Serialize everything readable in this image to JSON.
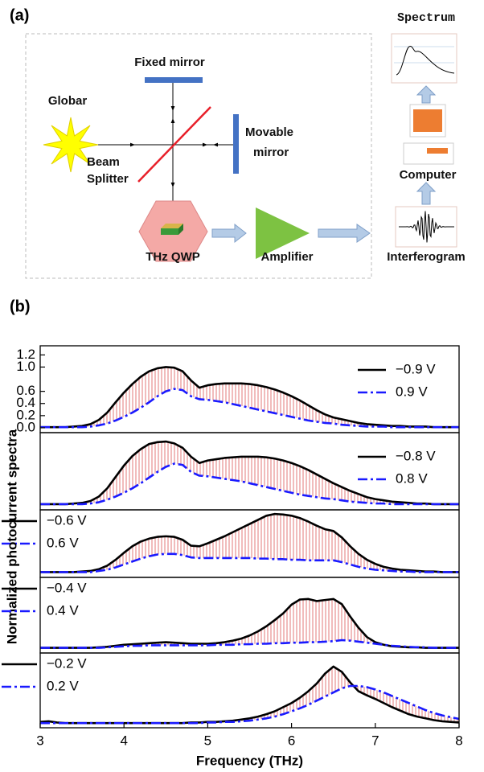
{
  "panel_a": {
    "label": "(a)",
    "fixed_mirror": "Fixed mirror",
    "globar": "Globar",
    "movable_mirror": [
      "Movable",
      "mirror"
    ],
    "beam_splitter": [
      "Beam",
      "Splitter"
    ],
    "thz_qwp": "THz QWP",
    "amplifier": "Amplifier",
    "interferogram": "Interferogram",
    "computer": "Computer",
    "spectrum": "Spectrum"
  },
  "panel_b": {
    "label": "(b)"
  },
  "chart_data": [
    {
      "type": "line",
      "xlim": [
        3,
        8
      ],
      "ylim": [
        -0.08,
        1.35
      ],
      "yticks": [
        {
          "value": 0,
          "label": "0.0"
        },
        0.2,
        0.4,
        0.6,
        {
          "value": 1,
          "label": "1.0"
        },
        1.2
      ],
      "legend": "upper right",
      "fill_between": true,
      "fill_color": "#e06b6b",
      "x": [
        3,
        3.1,
        3.2,
        3.3,
        3.4,
        3.5,
        3.6,
        3.7,
        3.8,
        3.9,
        4,
        4.1,
        4.2,
        4.3,
        4.4,
        4.5,
        4.6,
        4.7,
        4.8,
        4.9,
        5,
        5.1,
        5.2,
        5.3,
        5.4,
        5.5,
        5.6,
        5.7,
        5.8,
        5.9,
        6,
        6.1,
        6.2,
        6.3,
        6.4,
        6.5,
        6.6,
        6.7,
        6.8,
        6.9,
        7,
        7.1,
        7.2,
        7.3,
        7.4,
        7.5,
        7.6,
        7.7,
        7.8,
        7.9,
        8
      ],
      "series": [
        {
          "name": "−0.9 V",
          "color": "#000000",
          "linestyle": "solid",
          "values": [
            0.01,
            0.01,
            0.01,
            0.01,
            0.02,
            0.03,
            0.06,
            0.13,
            0.25,
            0.42,
            0.58,
            0.72,
            0.84,
            0.93,
            0.98,
            1.0,
            0.99,
            0.93,
            0.78,
            0.66,
            0.7,
            0.72,
            0.73,
            0.73,
            0.73,
            0.72,
            0.7,
            0.67,
            0.63,
            0.58,
            0.52,
            0.45,
            0.37,
            0.29,
            0.22,
            0.17,
            0.14,
            0.11,
            0.08,
            0.06,
            0.05,
            0.04,
            0.03,
            0.03,
            0.02,
            0.02,
            0.02,
            0.01,
            0.01,
            0.01,
            0.01
          ]
        },
        {
          "name": "0.9 V",
          "color": "#1a1aff",
          "linestyle": "dashdot",
          "values": [
            0.01,
            0.01,
            0.01,
            0.01,
            0.01,
            0.01,
            0.02,
            0.04,
            0.07,
            0.12,
            0.18,
            0.25,
            0.33,
            0.42,
            0.52,
            0.6,
            0.64,
            0.62,
            0.52,
            0.47,
            0.46,
            0.44,
            0.42,
            0.39,
            0.36,
            0.33,
            0.3,
            0.27,
            0.24,
            0.21,
            0.18,
            0.15,
            0.12,
            0.1,
            0.08,
            0.07,
            0.05,
            0.04,
            0.03,
            0.02,
            0.02,
            0.02,
            0.01,
            0.01,
            0.01,
            0.01,
            0.01,
            0.01,
            0.01,
            0.01,
            0.01
          ]
        }
      ]
    },
    {
      "type": "line",
      "xlim": [
        3,
        8
      ],
      "ylim": [
        -0.08,
        1.14
      ],
      "legend": "upper right",
      "fill_between": true,
      "fill_color": "#e06b6b",
      "x": [
        3,
        3.1,
        3.2,
        3.3,
        3.4,
        3.5,
        3.6,
        3.7,
        3.8,
        3.9,
        4,
        4.1,
        4.2,
        4.3,
        4.4,
        4.5,
        4.6,
        4.7,
        4.8,
        4.9,
        5,
        5.1,
        5.2,
        5.3,
        5.4,
        5.5,
        5.6,
        5.7,
        5.8,
        5.9,
        6,
        6.1,
        6.2,
        6.3,
        6.4,
        6.5,
        6.6,
        6.7,
        6.8,
        6.9,
        7,
        7.1,
        7.2,
        7.3,
        7.4,
        7.5,
        7.6,
        7.7,
        7.8,
        7.9,
        8
      ],
      "series": [
        {
          "name": "−0.8 V",
          "color": "#000000",
          "linestyle": "solid",
          "values": [
            0.01,
            0.01,
            0.01,
            0.01,
            0.02,
            0.03,
            0.06,
            0.13,
            0.26,
            0.44,
            0.62,
            0.77,
            0.88,
            0.96,
            0.99,
            1.0,
            0.97,
            0.9,
            0.76,
            0.66,
            0.7,
            0.72,
            0.74,
            0.75,
            0.76,
            0.76,
            0.76,
            0.75,
            0.73,
            0.7,
            0.66,
            0.61,
            0.55,
            0.48,
            0.41,
            0.34,
            0.28,
            0.22,
            0.17,
            0.12,
            0.09,
            0.07,
            0.05,
            0.04,
            0.03,
            0.02,
            0.02,
            0.01,
            0.01,
            0.01,
            0.01
          ]
        },
        {
          "name": "0.8 V",
          "color": "#1a1aff",
          "linestyle": "dashdot",
          "values": [
            0.01,
            0.01,
            0.01,
            0.01,
            0.01,
            0.01,
            0.02,
            0.04,
            0.08,
            0.13,
            0.19,
            0.26,
            0.34,
            0.43,
            0.52,
            0.6,
            0.65,
            0.63,
            0.52,
            0.46,
            0.45,
            0.43,
            0.41,
            0.39,
            0.37,
            0.34,
            0.31,
            0.28,
            0.25,
            0.22,
            0.19,
            0.16,
            0.14,
            0.12,
            0.1,
            0.09,
            0.07,
            0.05,
            0.04,
            0.03,
            0.02,
            0.02,
            0.01,
            0.01,
            0.01,
            0.01,
            0.01,
            0.01,
            0.01,
            0.01,
            0.01
          ]
        }
      ]
    },
    {
      "type": "line",
      "xlim": [
        3,
        8
      ],
      "ylim": [
        -0.08,
        1.07
      ],
      "ylabel": "Normalized photocurrent spectra",
      "legend": "upper left",
      "fill_between": true,
      "fill_color": "#e06b6b",
      "x": [
        3,
        3.1,
        3.2,
        3.3,
        3.4,
        3.5,
        3.6,
        3.7,
        3.8,
        3.9,
        4,
        4.1,
        4.2,
        4.3,
        4.4,
        4.5,
        4.6,
        4.7,
        4.8,
        4.9,
        5,
        5.1,
        5.2,
        5.3,
        5.4,
        5.5,
        5.6,
        5.7,
        5.8,
        5.9,
        6,
        6.1,
        6.2,
        6.3,
        6.4,
        6.5,
        6.6,
        6.7,
        6.8,
        6.9,
        7,
        7.1,
        7.2,
        7.3,
        7.4,
        7.5,
        7.6,
        7.7,
        7.8,
        7.9,
        8
      ],
      "series": [
        {
          "name": "−0.6 V",
          "color": "#000000",
          "linestyle": "solid",
          "values": [
            0.01,
            0.01,
            0.01,
            0.01,
            0.01,
            0.02,
            0.03,
            0.06,
            0.12,
            0.22,
            0.34,
            0.45,
            0.53,
            0.58,
            0.61,
            0.62,
            0.61,
            0.56,
            0.46,
            0.45,
            0.5,
            0.56,
            0.62,
            0.69,
            0.76,
            0.83,
            0.9,
            0.97,
            1.0,
            0.99,
            0.97,
            0.93,
            0.87,
            0.8,
            0.74,
            0.71,
            0.6,
            0.45,
            0.32,
            0.22,
            0.15,
            0.1,
            0.07,
            0.05,
            0.04,
            0.03,
            0.02,
            0.02,
            0.01,
            0.01,
            0.01
          ]
        },
        {
          "name": "0.6 V",
          "color": "#1a1aff",
          "linestyle": "dashdot",
          "values": [
            0.01,
            0.01,
            0.01,
            0.01,
            0.01,
            0.01,
            0.01,
            0.03,
            0.05,
            0.09,
            0.14,
            0.19,
            0.24,
            0.28,
            0.31,
            0.32,
            0.32,
            0.3,
            0.26,
            0.25,
            0.25,
            0.25,
            0.25,
            0.25,
            0.25,
            0.25,
            0.24,
            0.24,
            0.23,
            0.23,
            0.22,
            0.22,
            0.21,
            0.21,
            0.21,
            0.21,
            0.18,
            0.14,
            0.1,
            0.07,
            0.05,
            0.04,
            0.03,
            0.02,
            0.02,
            0.01,
            0.01,
            0.01,
            0.01,
            0.01,
            0.01
          ]
        }
      ]
    },
    {
      "type": "line",
      "xlim": [
        3,
        8
      ],
      "ylim": [
        -0.09,
        1.38
      ],
      "legend": "upper left",
      "fill_between": true,
      "fill_color": "#e06b6b",
      "x": [
        3,
        3.1,
        3.2,
        3.3,
        3.4,
        3.5,
        3.6,
        3.7,
        3.8,
        3.9,
        4,
        4.1,
        4.2,
        4.3,
        4.4,
        4.5,
        4.6,
        4.7,
        4.8,
        4.9,
        5,
        5.1,
        5.2,
        5.3,
        5.4,
        5.5,
        5.6,
        5.7,
        5.8,
        5.9,
        6,
        6.1,
        6.2,
        6.3,
        6.4,
        6.5,
        6.6,
        6.7,
        6.8,
        6.9,
        7,
        7.1,
        7.2,
        7.3,
        7.4,
        7.5,
        7.6,
        7.7,
        7.8,
        7.9,
        8
      ],
      "series": [
        {
          "name": "−0.4 V",
          "color": "#000000",
          "linestyle": "solid",
          "values": [
            0.01,
            0.01,
            0.01,
            0.01,
            0.01,
            0.01,
            0.01,
            0.02,
            0.03,
            0.05,
            0.07,
            0.08,
            0.09,
            0.1,
            0.11,
            0.12,
            0.11,
            0.1,
            0.09,
            0.09,
            0.09,
            0.1,
            0.12,
            0.15,
            0.19,
            0.25,
            0.33,
            0.43,
            0.55,
            0.68,
            0.85,
            0.95,
            0.96,
            0.92,
            0.94,
            0.96,
            0.86,
            0.62,
            0.4,
            0.22,
            0.12,
            0.07,
            0.04,
            0.03,
            0.02,
            0.02,
            0.01,
            0.01,
            0.01,
            0.01,
            0.01
          ]
        },
        {
          "name": "0.4 V",
          "color": "#1a1aff",
          "linestyle": "dashdot",
          "values": [
            0.01,
            0.01,
            0.01,
            0.01,
            0.01,
            0.01,
            0.01,
            0.01,
            0.02,
            0.03,
            0.04,
            0.05,
            0.05,
            0.06,
            0.06,
            0.06,
            0.06,
            0.06,
            0.06,
            0.06,
            0.06,
            0.07,
            0.07,
            0.07,
            0.08,
            0.08,
            0.09,
            0.09,
            0.1,
            0.1,
            0.11,
            0.11,
            0.12,
            0.12,
            0.13,
            0.14,
            0.16,
            0.15,
            0.13,
            0.11,
            0.09,
            0.07,
            0.05,
            0.04,
            0.03,
            0.02,
            0.02,
            0.01,
            0.01,
            0.01,
            0.01
          ]
        }
      ]
    },
    {
      "type": "line",
      "xlim": [
        3,
        8
      ],
      "ylim": [
        -0.07,
        1.2
      ],
      "xticks": [
        3,
        4,
        5,
        6,
        7,
        8
      ],
      "xlabel": "Frequency (THz)",
      "legend": "upper left",
      "fill_between": true,
      "fill_color": "#e06b6b",
      "x": [
        3,
        3.1,
        3.2,
        3.3,
        3.4,
        3.5,
        3.6,
        3.7,
        3.8,
        3.9,
        4,
        4.1,
        4.2,
        4.3,
        4.4,
        4.5,
        4.6,
        4.7,
        4.8,
        4.9,
        5,
        5.1,
        5.2,
        5.3,
        5.4,
        5.5,
        5.6,
        5.7,
        5.8,
        5.9,
        6,
        6.1,
        6.2,
        6.3,
        6.4,
        6.5,
        6.6,
        6.7,
        6.8,
        6.9,
        7,
        7.1,
        7.2,
        7.3,
        7.4,
        7.5,
        7.6,
        7.7,
        7.8,
        7.9,
        8
      ],
      "series": [
        {
          "name": "−0.2 V",
          "color": "#000000",
          "linestyle": "solid",
          "values": [
            0.03,
            0.04,
            0.02,
            0.01,
            0.01,
            0.01,
            0.01,
            0.01,
            0.01,
            0.01,
            0.01,
            0.01,
            0.01,
            0.01,
            0.01,
            0.01,
            0.01,
            0.01,
            0.02,
            0.02,
            0.03,
            0.03,
            0.04,
            0.05,
            0.07,
            0.09,
            0.12,
            0.16,
            0.21,
            0.28,
            0.35,
            0.44,
            0.55,
            0.68,
            0.85,
            0.97,
            0.88,
            0.7,
            0.55,
            0.48,
            0.42,
            0.35,
            0.28,
            0.22,
            0.16,
            0.12,
            0.09,
            0.06,
            0.04,
            0.03,
            0.02
          ]
        },
        {
          "name": "0.2 V",
          "color": "#1a1aff",
          "linestyle": "dashdot",
          "values": [
            0.01,
            0.01,
            0.01,
            0.01,
            0.01,
            0.01,
            0.01,
            0.01,
            0.01,
            0.01,
            0.01,
            0.01,
            0.01,
            0.01,
            0.01,
            0.01,
            0.01,
            0.01,
            0.01,
            0.01,
            0.02,
            0.02,
            0.03,
            0.03,
            0.04,
            0.05,
            0.07,
            0.09,
            0.12,
            0.16,
            0.21,
            0.26,
            0.32,
            0.39,
            0.46,
            0.53,
            0.6,
            0.64,
            0.64,
            0.62,
            0.58,
            0.53,
            0.47,
            0.41,
            0.35,
            0.29,
            0.23,
            0.18,
            0.14,
            0.11,
            0.08
          ]
        }
      ]
    }
  ]
}
